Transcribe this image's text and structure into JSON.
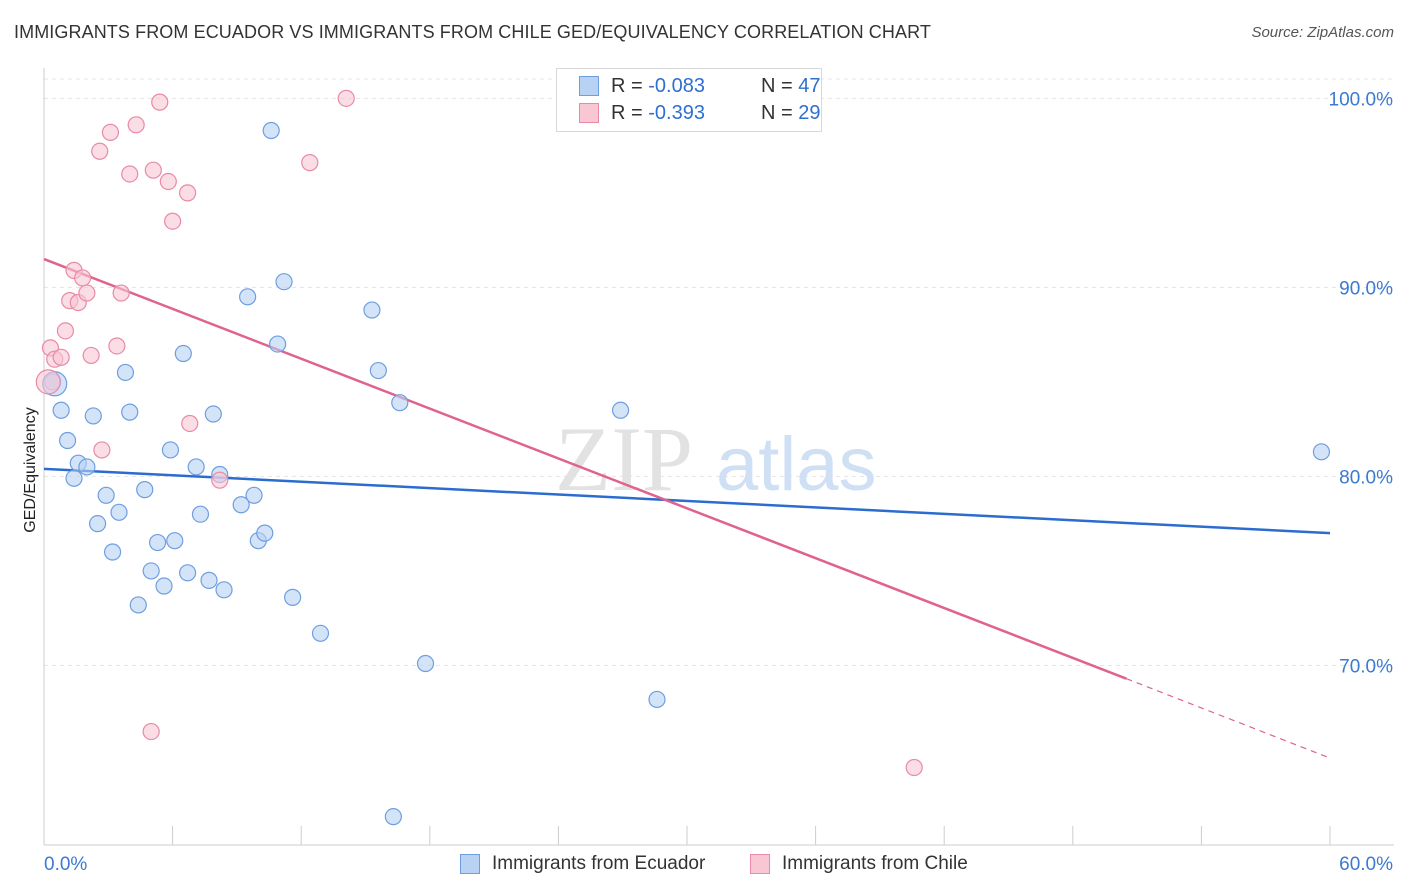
{
  "title": "IMMIGRANTS FROM ECUADOR VS IMMIGRANTS FROM CHILE GED/EQUIVALENCY CORRELATION CHART",
  "source": "Source: ZipAtlas.com",
  "legend": {
    "series1": {
      "r_label": "R =",
      "r_value": "-0.083",
      "n_label": "N =",
      "n_value": "47"
    },
    "series2": {
      "r_label": "R =",
      "r_value": "-0.393",
      "n_label": "N =",
      "n_value": "29"
    }
  },
  "watermark": {
    "part1": "ZIP",
    "part2": "atlas"
  },
  "colors": {
    "ecuador_fill": "#b8d2f4",
    "ecuador_stroke": "#6e9ee0",
    "ecuador_line": "#2b6ccf",
    "chile_fill": "#f9c6d4",
    "chile_stroke": "#e98aa6",
    "chile_line": "#e0628f",
    "axis_label": "#3b7ad1"
  },
  "chart_data": {
    "type": "scatter",
    "title": "IMMIGRANTS FROM ECUADOR VS IMMIGRANTS FROM CHILE GED/EQUIVALENCY CORRELATION CHART",
    "xlabel": "",
    "ylabel": "GED/Equivalency",
    "xlim": [
      0,
      60
    ],
    "ylim": [
      60.5,
      101.5
    ],
    "x_tick_labels": [
      "0.0%",
      "60.0%"
    ],
    "y_ticks": [
      70,
      80,
      90,
      100
    ],
    "y_tick_labels": [
      "70.0%",
      "80.0%",
      "90.0%",
      "100.0%"
    ],
    "series": [
      {
        "name": "Immigrants from Ecuador",
        "points": [
          [
            0.4,
            85.0
          ],
          [
            0.8,
            83.5
          ],
          [
            1.1,
            81.9
          ],
          [
            1.4,
            79.9
          ],
          [
            1.6,
            80.7
          ],
          [
            2.0,
            80.5
          ],
          [
            2.3,
            83.2
          ],
          [
            2.5,
            77.5
          ],
          [
            2.9,
            79.0
          ],
          [
            3.2,
            76.0
          ],
          [
            3.5,
            78.1
          ],
          [
            3.8,
            85.5
          ],
          [
            4.0,
            83.4
          ],
          [
            4.4,
            73.2
          ],
          [
            4.7,
            79.3
          ],
          [
            5.0,
            75.0
          ],
          [
            5.3,
            76.5
          ],
          [
            5.6,
            74.2
          ],
          [
            5.9,
            81.4
          ],
          [
            6.1,
            76.6
          ],
          [
            6.5,
            86.5
          ],
          [
            6.7,
            74.9
          ],
          [
            7.1,
            80.5
          ],
          [
            7.3,
            78.0
          ],
          [
            7.7,
            74.5
          ],
          [
            7.9,
            83.3
          ],
          [
            8.2,
            80.1
          ],
          [
            8.4,
            74.0
          ],
          [
            9.2,
            78.5
          ],
          [
            9.5,
            89.5
          ],
          [
            9.8,
            79.0
          ],
          [
            10.0,
            76.6
          ],
          [
            10.3,
            77.0
          ],
          [
            10.6,
            98.3
          ],
          [
            10.9,
            87.0
          ],
          [
            11.2,
            90.3
          ],
          [
            11.6,
            73.6
          ],
          [
            12.9,
            71.7
          ],
          [
            15.3,
            88.8
          ],
          [
            15.6,
            85.6
          ],
          [
            16.3,
            62.0
          ],
          [
            16.6,
            83.9
          ],
          [
            17.8,
            70.1
          ],
          [
            26.9,
            83.5
          ],
          [
            28.6,
            68.2
          ],
          [
            59.6,
            81.3
          ],
          [
            0.5,
            84.9
          ]
        ]
      },
      {
        "name": "Immigrants from Chile",
        "points": [
          [
            0.3,
            86.8
          ],
          [
            0.5,
            86.2
          ],
          [
            0.8,
            86.3
          ],
          [
            1.0,
            87.7
          ],
          [
            1.2,
            89.3
          ],
          [
            1.4,
            90.9
          ],
          [
            1.6,
            89.2
          ],
          [
            1.8,
            90.5
          ],
          [
            2.0,
            89.7
          ],
          [
            2.2,
            86.4
          ],
          [
            2.6,
            97.2
          ],
          [
            2.7,
            81.4
          ],
          [
            3.1,
            98.2
          ],
          [
            3.4,
            86.9
          ],
          [
            3.6,
            89.7
          ],
          [
            4.0,
            96.0
          ],
          [
            4.3,
            98.6
          ],
          [
            5.0,
            66.5
          ],
          [
            5.1,
            96.2
          ],
          [
            5.4,
            99.8
          ],
          [
            5.8,
            95.6
          ],
          [
            6.0,
            93.5
          ],
          [
            6.7,
            95.0
          ],
          [
            6.8,
            82.8
          ],
          [
            8.2,
            79.8
          ],
          [
            12.4,
            96.6
          ],
          [
            14.1,
            100.0
          ],
          [
            40.6,
            64.6
          ],
          [
            0.2,
            85.0
          ]
        ]
      }
    ],
    "trendlines": [
      {
        "series": "Immigrants from Ecuador",
        "x": [
          0,
          60
        ],
        "y": [
          80.4,
          77.0
        ]
      },
      {
        "series": "Immigrants from Chile",
        "x": [
          0,
          50.5
        ],
        "y": [
          91.5,
          69.3
        ],
        "dashed_to": [
          60,
          65.1
        ]
      }
    ],
    "legend_position": "top-center"
  }
}
